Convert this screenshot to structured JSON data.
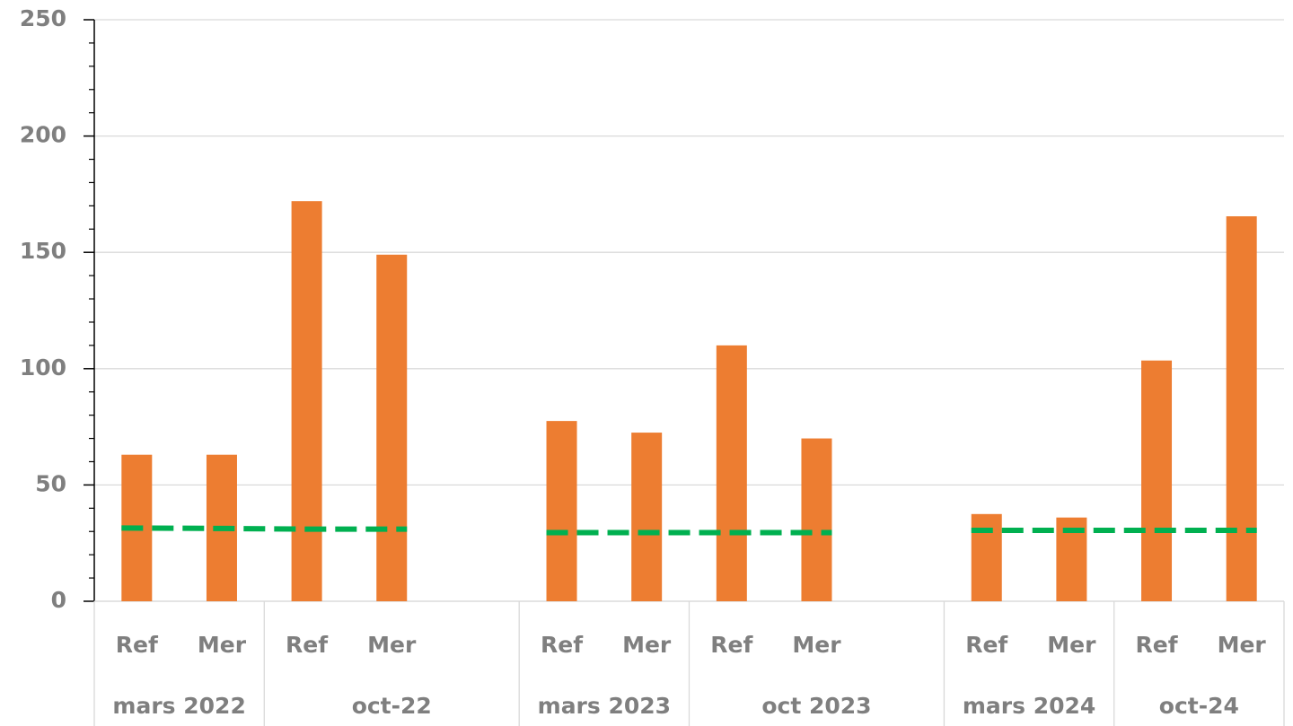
{
  "chart_data": {
    "type": "bar",
    "groups": [
      {
        "label": "mars 2022",
        "categories": [
          "Ref",
          "Mer"
        ]
      },
      {
        "label": "oct-22",
        "categories": [
          "Ref",
          "Mer",
          null
        ]
      },
      {
        "label": "mars 2023",
        "categories": [
          "Ref",
          "Mer"
        ]
      },
      {
        "label": "oct 2023",
        "categories": [
          "Ref",
          "Mer",
          null
        ]
      },
      {
        "label": "mars 2024",
        "categories": [
          "Ref",
          "Mer"
        ]
      },
      {
        "label": "oct-24",
        "categories": [
          "Ref",
          "Mer"
        ]
      }
    ],
    "bars": {
      "color": "#ed7d31",
      "values": [
        63,
        63,
        172,
        149,
        null,
        77.5,
        72.5,
        110,
        70,
        null,
        37.5,
        36,
        103.5,
        165.5
      ]
    },
    "reference_line": {
      "color": "#00b050",
      "dashed": true,
      "values": [
        31.5,
        31.3,
        31,
        31,
        null,
        29.5,
        29.5,
        29.5,
        29.5,
        null,
        30.5,
        30.5,
        30.5,
        30.5
      ]
    },
    "ylim": [
      0,
      250
    ],
    "yticks": [
      0,
      50,
      100,
      150,
      200,
      250
    ],
    "yminorticks": [
      10,
      20,
      30,
      40,
      60,
      70,
      80,
      90,
      110,
      120,
      130,
      140,
      160,
      170,
      180,
      190,
      210,
      220,
      230,
      240
    ],
    "grid": true
  }
}
